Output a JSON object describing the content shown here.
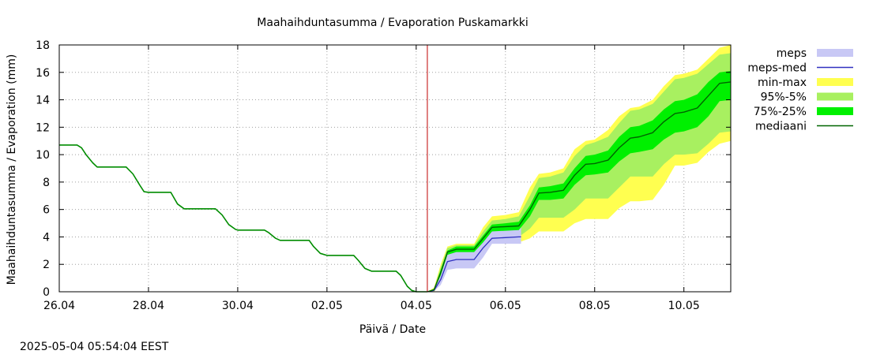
{
  "chart_data": {
    "type": "area",
    "title": "Maahaihduntasumma / Evaporation   Puskamarkki",
    "xlabel": "Päivä / Date",
    "ylabel": "Maahaihduntasumma / Evaporation (mm)",
    "timestamp": "2025-05-04  05:54:04 EEST",
    "x_unit": "days since 26.04 00:00",
    "xlim": [
      0,
      15.05
    ],
    "ylim": [
      0,
      18
    ],
    "yticks": [
      0,
      2,
      4,
      6,
      8,
      10,
      12,
      14,
      16,
      18
    ],
    "xticks": [
      {
        "x": 0,
        "label": "26.04"
      },
      {
        "x": 2,
        "label": "28.04"
      },
      {
        "x": 4,
        "label": "30.04"
      },
      {
        "x": 6,
        "label": "02.05"
      },
      {
        "x": 8,
        "label": "04.05"
      },
      {
        "x": 10,
        "label": "06.05"
      },
      {
        "x": 12,
        "label": "08.05"
      },
      {
        "x": 14,
        "label": "10.05"
      }
    ],
    "grid": true,
    "forecast_start_x": 8.25,
    "legend_position": "right",
    "colors": {
      "meps": "#c8c8f5",
      "meps_med": "#3030c0",
      "min_max": "#ffff50",
      "p95_p5": "#a8f060",
      "p75_p25": "#00f000",
      "mediaani": "#006400",
      "observed": "#008c00",
      "forecast_line": "#c00000"
    },
    "legend": [
      {
        "key": "meps",
        "label": "meps",
        "kind": "band"
      },
      {
        "key": "meps_med",
        "label": "meps-med",
        "kind": "line"
      },
      {
        "key": "min_max",
        "label": "min-max",
        "kind": "band"
      },
      {
        "key": "p95_p5",
        "label": "95%-5%",
        "kind": "band"
      },
      {
        "key": "p75_p25",
        "label": "75%-25%",
        "kind": "band"
      },
      {
        "key": "mediaani",
        "label": "mediaani",
        "kind": "line"
      }
    ],
    "observed": {
      "x": [
        0,
        0.4,
        0.5,
        0.6,
        0.75,
        0.85,
        1.0,
        1.5,
        1.65,
        1.8,
        1.9,
        2.0,
        2.5,
        2.65,
        2.8,
        3.0,
        3.5,
        3.65,
        3.8,
        3.95,
        4.0,
        4.6,
        4.7,
        4.85,
        4.95,
        5.0,
        5.6,
        5.7,
        5.85,
        6.0,
        6.6,
        6.7,
        6.85,
        7.0,
        7.55,
        7.65,
        7.8,
        7.9,
        8.0,
        8.25
      ],
      "y": [
        10.7,
        10.7,
        10.5,
        10.0,
        9.4,
        9.1,
        9.1,
        9.1,
        8.6,
        7.8,
        7.3,
        7.25,
        7.25,
        6.4,
        6.05,
        6.05,
        6.05,
        5.6,
        4.9,
        4.55,
        4.5,
        4.5,
        4.3,
        3.9,
        3.75,
        3.75,
        3.75,
        3.3,
        2.8,
        2.65,
        2.65,
        2.3,
        1.7,
        1.5,
        1.5,
        1.2,
        0.4,
        0.1,
        0.0,
        0.0
      ]
    },
    "forecast": {
      "x": [
        8.25,
        8.4,
        8.55,
        8.7,
        8.9,
        9.3,
        9.5,
        9.7,
        10.0,
        10.3,
        10.55,
        10.75,
        11.0,
        11.3,
        11.55,
        11.8,
        12.0,
        12.3,
        12.55,
        12.8,
        13.0,
        13.3,
        13.55,
        13.8,
        14.0,
        14.3,
        14.55,
        14.8,
        15.05
      ],
      "mediaani": [
        0.0,
        0.15,
        1.4,
        2.9,
        3.1,
        3.1,
        3.9,
        4.7,
        4.75,
        4.8,
        6.0,
        7.2,
        7.25,
        7.4,
        8.5,
        9.3,
        9.35,
        9.6,
        10.5,
        11.2,
        11.3,
        11.6,
        12.4,
        13.0,
        13.1,
        13.4,
        14.3,
        15.2,
        15.3
      ],
      "p75": [
        0.0,
        0.2,
        1.6,
        3.0,
        3.3,
        3.3,
        4.1,
        4.9,
        5.0,
        5.1,
        6.3,
        7.6,
        7.7,
        7.9,
        9.0,
        9.9,
        10.0,
        10.3,
        11.3,
        12.0,
        12.1,
        12.5,
        13.3,
        13.9,
        14.0,
        14.4,
        15.3,
        16.0,
        16.1
      ],
      "p25": [
        0.0,
        0.1,
        1.2,
        2.7,
        2.9,
        2.9,
        3.6,
        4.4,
        4.45,
        4.5,
        5.5,
        6.7,
        6.7,
        6.8,
        7.8,
        8.5,
        8.55,
        8.7,
        9.5,
        10.1,
        10.2,
        10.4,
        11.1,
        11.6,
        11.7,
        12.0,
        12.8,
        13.9,
        14.0
      ],
      "p95": [
        0.0,
        0.25,
        1.8,
        3.2,
        3.4,
        3.4,
        4.4,
        5.2,
        5.3,
        5.5,
        7.0,
        8.3,
        8.4,
        8.7,
        9.9,
        10.7,
        10.9,
        11.3,
        12.3,
        13.2,
        13.3,
        13.7,
        14.6,
        15.5,
        15.6,
        15.9,
        16.6,
        17.3,
        17.4
      ],
      "p5": [
        0.0,
        0.05,
        1.0,
        2.5,
        2.7,
        2.7,
        3.3,
        4.0,
        4.0,
        4.0,
        4.6,
        5.4,
        5.4,
        5.4,
        6.0,
        6.8,
        6.8,
        6.8,
        7.6,
        8.4,
        8.4,
        8.4,
        9.3,
        10.0,
        10.0,
        10.1,
        10.8,
        11.6,
        11.7
      ],
      "max": [
        0.0,
        0.3,
        2.0,
        3.3,
        3.5,
        3.5,
        4.7,
        5.5,
        5.6,
        5.8,
        7.6,
        8.6,
        8.7,
        9.0,
        10.4,
        11.0,
        11.1,
        11.8,
        12.8,
        13.4,
        13.5,
        14.0,
        15.0,
        15.8,
        15.9,
        16.2,
        17.0,
        17.8,
        18.0
      ],
      "min": [
        0.0,
        0.0,
        0.6,
        2.3,
        2.5,
        2.5,
        3.0,
        3.6,
        3.6,
        3.6,
        3.9,
        4.4,
        4.4,
        4.4,
        5.0,
        5.3,
        5.3,
        5.3,
        6.1,
        6.6,
        6.6,
        6.7,
        7.8,
        9.2,
        9.2,
        9.4,
        10.2,
        10.8,
        11.0
      ]
    },
    "meps": {
      "x": [
        8.25,
        8.4,
        8.55,
        8.7,
        8.9,
        9.3,
        9.5,
        9.7,
        10.0,
        10.3,
        10.35
      ],
      "med": [
        0.0,
        0.1,
        0.9,
        2.2,
        2.35,
        2.35,
        3.2,
        3.9,
        3.95,
        4.0,
        4.0
      ],
      "upper": [
        0.0,
        0.15,
        1.4,
        2.8,
        2.9,
        2.9,
        3.9,
        4.6,
        4.65,
        4.7,
        4.7
      ],
      "lower": [
        0.0,
        0.05,
        0.5,
        1.6,
        1.7,
        1.7,
        2.5,
        3.5,
        3.5,
        3.5,
        3.5
      ]
    }
  }
}
